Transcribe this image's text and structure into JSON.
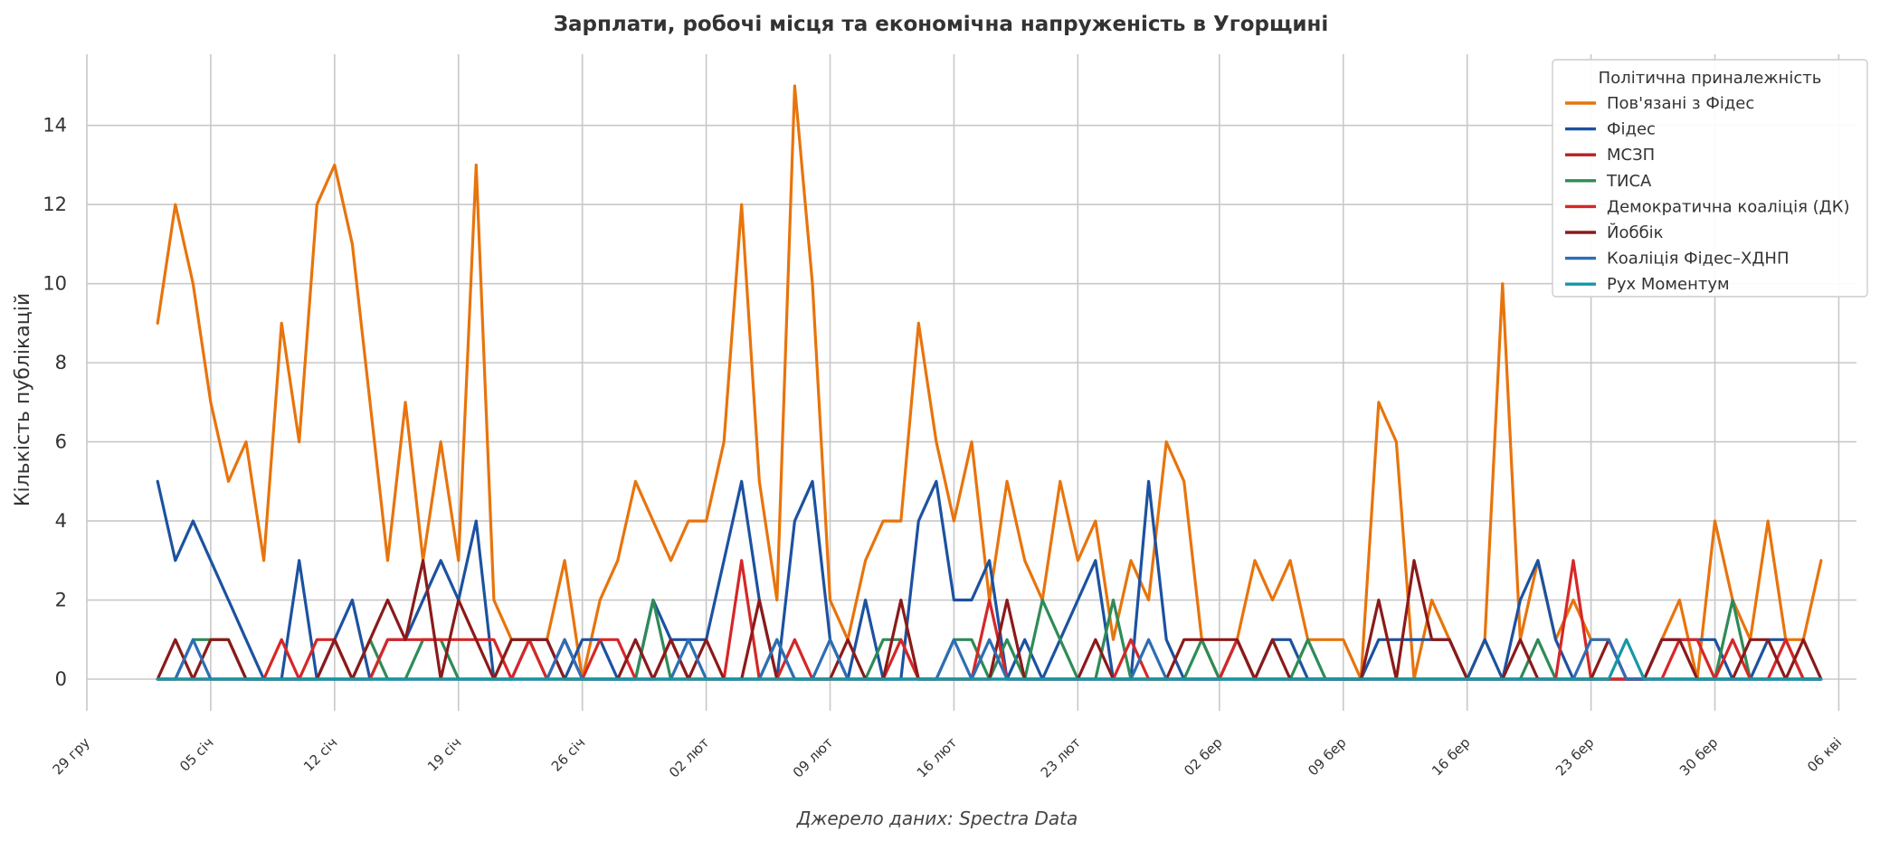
{
  "chart_data": {
    "type": "line",
    "title": "Зарплати, робочі місця та економічна напруженість в Угорщині",
    "ylabel": "Кількість публікацій",
    "xlabel": "",
    "source": "Джерело даних: Spectra Data",
    "ylim": [
      -0.8,
      15.8
    ],
    "yticks": [
      0,
      2,
      4,
      6,
      8,
      10,
      12,
      14
    ],
    "grid": true,
    "legend_position": "top-right",
    "legend_title": "Політична приналежність",
    "x_start": "2024-01-02",
    "x_end": "2024-04-04",
    "x_range": [
      "2023-12-29",
      "2024-04-07"
    ],
    "xticks": [
      {
        "date": "2023-12-29",
        "label": "29 гру"
      },
      {
        "date": "2024-01-05",
        "label": "05 січ"
      },
      {
        "date": "2024-01-12",
        "label": "12 січ"
      },
      {
        "date": "2024-01-19",
        "label": "19 січ"
      },
      {
        "date": "2024-01-26",
        "label": "26 січ"
      },
      {
        "date": "2024-02-02",
        "label": "02 лют"
      },
      {
        "date": "2024-02-09",
        "label": "09 лют"
      },
      {
        "date": "2024-02-16",
        "label": "16 лют"
      },
      {
        "date": "2024-02-23",
        "label": "23 лют"
      },
      {
        "date": "2024-03-02",
        "label": "02 бер"
      },
      {
        "date": "2024-03-09",
        "label": "09 бер"
      },
      {
        "date": "2024-03-16",
        "label": "16 бер"
      },
      {
        "date": "2024-03-23",
        "label": "23 бер"
      },
      {
        "date": "2024-03-30",
        "label": "30 бер"
      },
      {
        "date": "2024-04-06",
        "label": "06 кві"
      }
    ],
    "series": [
      {
        "name": "Пов'язані з Фідес",
        "color": "#e8740c",
        "values": [
          9,
          12,
          10,
          7,
          5,
          6,
          3,
          9,
          6,
          12,
          13,
          11,
          7,
          3,
          7,
          3,
          6,
          3,
          13,
          2,
          1,
          1,
          1,
          3,
          0,
          2,
          3,
          5,
          4,
          3,
          4,
          4,
          6,
          12,
          5,
          2,
          15,
          10,
          2,
          1,
          3,
          4,
          4,
          9,
          6,
          4,
          6,
          2,
          5,
          3,
          2,
          5,
          3,
          4,
          1,
          3,
          2,
          6,
          5,
          1,
          0,
          1,
          3,
          2,
          3,
          1,
          1,
          1,
          0,
          7,
          6,
          0,
          2,
          1,
          0,
          1,
          10,
          1,
          3,
          1,
          2,
          1,
          1,
          0,
          0,
          1,
          2,
          0,
          4,
          2,
          1,
          4,
          1,
          1,
          3
        ]
      },
      {
        "name": "Фідес",
        "color": "#1c52a0",
        "values": [
          5,
          3,
          4,
          3,
          2,
          1,
          0,
          0,
          3,
          0,
          1,
          2,
          0,
          1,
          1,
          2,
          3,
          2,
          4,
          0,
          0,
          1,
          1,
          0,
          1,
          1,
          0,
          0,
          2,
          1,
          1,
          1,
          3,
          5,
          2,
          0,
          4,
          5,
          1,
          0,
          2,
          0,
          0,
          4,
          5,
          2,
          2,
          3,
          0,
          1,
          0,
          1,
          2,
          3,
          0,
          0,
          5,
          1,
          0,
          0,
          0,
          1,
          0,
          1,
          1,
          0,
          0,
          0,
          0,
          1,
          1,
          1,
          1,
          1,
          0,
          1,
          0,
          2,
          3,
          1,
          0,
          0,
          0,
          0,
          0,
          1,
          1,
          1,
          1,
          0,
          0,
          1,
          1,
          0,
          0
        ]
      },
      {
        "name": "МСЗП",
        "color": "#b22222",
        "values": [
          0,
          0,
          0,
          0,
          0,
          0,
          0,
          0,
          0,
          0,
          0,
          0,
          0,
          0,
          0,
          0,
          0,
          0,
          0,
          0,
          0,
          0,
          0,
          0,
          0,
          0,
          0,
          0,
          0,
          0,
          0,
          0,
          0,
          0,
          0,
          0,
          0,
          0,
          0,
          0,
          0,
          0,
          0,
          0,
          0,
          0,
          0,
          0,
          0,
          0,
          0,
          0,
          0,
          0,
          0,
          0,
          0,
          0,
          0,
          0,
          0,
          0,
          0,
          0,
          0,
          0,
          0,
          0,
          0,
          0,
          0,
          0,
          0,
          0,
          0,
          0,
          0,
          0,
          0,
          0,
          0,
          0,
          0,
          0,
          0,
          0,
          0,
          0,
          0,
          0,
          0,
          0,
          0,
          0,
          0
        ]
      },
      {
        "name": "ТИСА",
        "color": "#2e8b57",
        "values": [
          0,
          0,
          1,
          1,
          1,
          0,
          0,
          0,
          0,
          0,
          0,
          0,
          1,
          0,
          0,
          1,
          1,
          0,
          0,
          0,
          1,
          1,
          0,
          0,
          0,
          0,
          0,
          0,
          2,
          0,
          0,
          0,
          0,
          0,
          0,
          1,
          0,
          0,
          0,
          0,
          0,
          1,
          1,
          0,
          0,
          1,
          1,
          0,
          1,
          0,
          2,
          1,
          0,
          0,
          2,
          0,
          0,
          0,
          0,
          1,
          0,
          0,
          0,
          0,
          0,
          1,
          0,
          0,
          0,
          0,
          0,
          0,
          0,
          0,
          0,
          0,
          0,
          0,
          1,
          0,
          0,
          0,
          0,
          0,
          0,
          0,
          0,
          0,
          0,
          2,
          0,
          0,
          0,
          0,
          0
        ]
      },
      {
        "name": "Демократична коаліція (ДК)",
        "color": "#d62728",
        "values": [
          0,
          0,
          0,
          0,
          0,
          0,
          0,
          1,
          0,
          1,
          1,
          0,
          0,
          1,
          1,
          1,
          1,
          1,
          1,
          1,
          0,
          1,
          0,
          1,
          0,
          1,
          1,
          0,
          0,
          1,
          0,
          0,
          0,
          3,
          0,
          0,
          1,
          0,
          0,
          0,
          0,
          0,
          1,
          0,
          0,
          0,
          0,
          2,
          0,
          0,
          0,
          0,
          0,
          0,
          0,
          1,
          0,
          0,
          0,
          0,
          0,
          1,
          0,
          0,
          0,
          0,
          0,
          0,
          0,
          0,
          0,
          0,
          0,
          0,
          0,
          0,
          0,
          0,
          0,
          0,
          3,
          0,
          0,
          0,
          0,
          0,
          1,
          1,
          0,
          1,
          0,
          0,
          1,
          0,
          0
        ]
      },
      {
        "name": "Йоббік",
        "color": "#8b1a1a",
        "values": [
          0,
          1,
          0,
          1,
          1,
          0,
          0,
          0,
          0,
          0,
          1,
          0,
          1,
          2,
          1,
          3,
          0,
          2,
          1,
          0,
          1,
          1,
          1,
          0,
          0,
          0,
          0,
          1,
          0,
          1,
          0,
          1,
          0,
          0,
          2,
          0,
          0,
          0,
          0,
          1,
          0,
          0,
          2,
          0,
          0,
          0,
          0,
          0,
          2,
          0,
          0,
          0,
          0,
          1,
          0,
          0,
          0,
          0,
          1,
          1,
          1,
          1,
          0,
          1,
          0,
          0,
          0,
          0,
          0,
          2,
          0,
          3,
          1,
          1,
          0,
          0,
          0,
          1,
          0,
          0,
          0,
          0,
          1,
          0,
          0,
          1,
          1,
          0,
          0,
          0,
          1,
          1,
          0,
          1,
          0
        ]
      },
      {
        "name": "Коаліція Фідес–ХДНП",
        "color": "#2e6db5",
        "values": [
          0,
          0,
          1,
          0,
          0,
          0,
          0,
          0,
          0,
          0,
          0,
          0,
          0,
          0,
          0,
          0,
          0,
          0,
          0,
          0,
          0,
          0,
          0,
          1,
          0,
          0,
          0,
          0,
          0,
          0,
          1,
          0,
          0,
          0,
          0,
          1,
          0,
          0,
          1,
          0,
          0,
          0,
          0,
          0,
          0,
          1,
          0,
          1,
          0,
          0,
          0,
          0,
          0,
          0,
          0,
          0,
          1,
          0,
          0,
          0,
          0,
          0,
          0,
          0,
          0,
          0,
          0,
          0,
          0,
          0,
          0,
          0,
          0,
          0,
          0,
          0,
          0,
          0,
          0,
          0,
          0,
          1,
          1,
          0,
          0,
          0,
          0,
          0,
          0,
          0,
          0,
          0,
          0,
          0,
          0
        ]
      },
      {
        "name": "Рух Моментум",
        "color": "#1597a5",
        "values": [
          0,
          0,
          0,
          0,
          0,
          0,
          0,
          0,
          0,
          0,
          0,
          0,
          0,
          0,
          0,
          0,
          0,
          0,
          0,
          0,
          0,
          0,
          0,
          0,
          0,
          0,
          0,
          0,
          0,
          0,
          0,
          0,
          0,
          0,
          0,
          0,
          0,
          0,
          0,
          0,
          0,
          0,
          0,
          0,
          0,
          0,
          0,
          0,
          0,
          0,
          0,
          0,
          0,
          0,
          0,
          0,
          0,
          0,
          0,
          0,
          0,
          0,
          0,
          0,
          0,
          0,
          0,
          0,
          0,
          0,
          0,
          0,
          0,
          0,
          0,
          0,
          0,
          0,
          0,
          0,
          0,
          0,
          0,
          1,
          0,
          0,
          0,
          0,
          0,
          0,
          0,
          0,
          0,
          0,
          0
        ]
      }
    ]
  }
}
